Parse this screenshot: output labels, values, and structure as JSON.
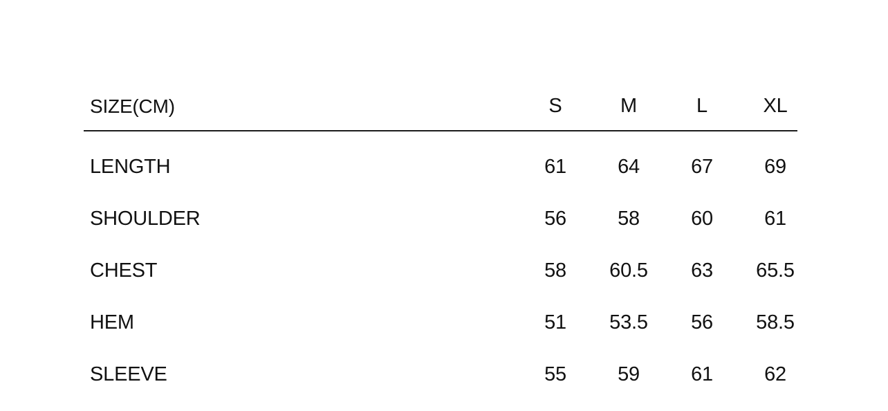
{
  "table": {
    "header": {
      "label": "SIZE(CM)",
      "columns": [
        "S",
        "M",
        "L",
        "XL"
      ]
    },
    "rows": [
      {
        "label": "LENGTH",
        "values": [
          "61",
          "64",
          "67",
          "69"
        ]
      },
      {
        "label": "SHOULDER",
        "values": [
          "56",
          "58",
          "60",
          "61"
        ]
      },
      {
        "label": "CHEST",
        "values": [
          "58",
          "60.5",
          "63",
          "65.5"
        ]
      },
      {
        "label": "HEM",
        "values": [
          "51",
          "53.5",
          "56",
          "58.5"
        ]
      },
      {
        "label": "SLEEVE",
        "values": [
          "55",
          "59",
          "61",
          "62"
        ]
      }
    ]
  },
  "chart_data": {
    "type": "table",
    "title": "SIZE(CM)",
    "categories": [
      "S",
      "M",
      "L",
      "XL"
    ],
    "series": [
      {
        "name": "LENGTH",
        "values": [
          61,
          64,
          67,
          69
        ]
      },
      {
        "name": "SHOULDER",
        "values": [
          56,
          58,
          60,
          61
        ]
      },
      {
        "name": "CHEST",
        "values": [
          58,
          60.5,
          63,
          65.5
        ]
      },
      {
        "name": "HEM",
        "values": [
          51,
          53.5,
          56,
          58.5
        ]
      },
      {
        "name": "SLEEVE",
        "values": [
          55,
          59,
          61,
          62
        ]
      }
    ]
  },
  "colors": {
    "background": "#ffffff",
    "text": "#111111",
    "divider": "#1b1b1b"
  }
}
